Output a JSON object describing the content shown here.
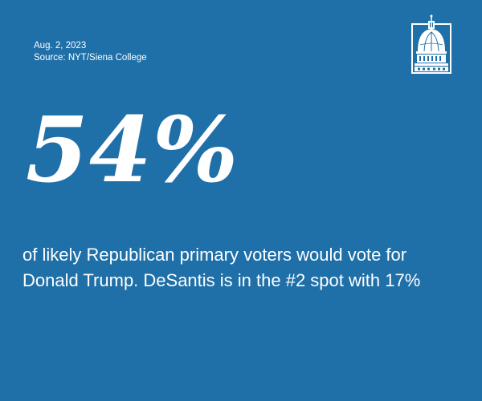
{
  "header": {
    "date": "Aug. 2, 2023",
    "source": "Source: NYT/Siena College"
  },
  "stat": {
    "value": "54%",
    "caption": "of likely Republican primary voters would vote for Donald Trump. DeSantis is in the #2 spot with 17%"
  },
  "logo": {
    "icon": "capitol-dome-icon"
  },
  "colors": {
    "background": "#1f6fa8",
    "text": "#ffffff"
  }
}
